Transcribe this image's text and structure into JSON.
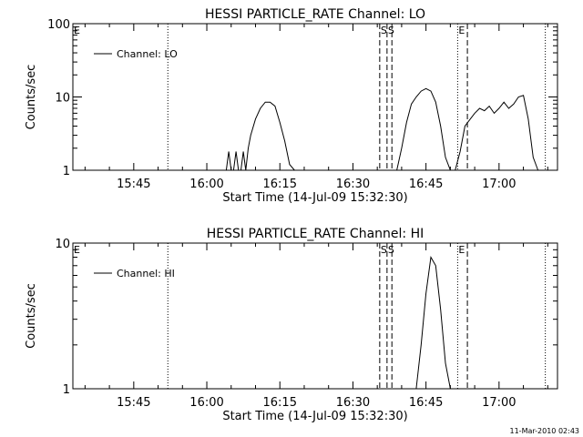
{
  "chart_data": [
    {
      "type": "line",
      "title": "HESSI PARTICLE_RATE Channel: LO",
      "xlabel": "Start Time (14-Jul-09 15:32:30)",
      "ylabel": "Counts/sec",
      "y_scale": "log",
      "ylim": [
        1,
        100
      ],
      "xlim": [
        "15:32:30",
        "17:12:00"
      ],
      "x_ticks": [
        "15:45",
        "16:00",
        "16:15",
        "16:30",
        "16:45",
        "17:00"
      ],
      "y_ticks": [
        "1",
        "10",
        "100"
      ],
      "legend": "top-left",
      "series": [
        {
          "name": "Channel: LO",
          "x": [
            "16:04:00",
            "16:04:30",
            "16:05:00",
            "16:05:30",
            "16:06:00",
            "16:06:30",
            "16:07:00",
            "16:07:30",
            "16:08:00",
            "16:08:30",
            "16:09:00",
            "16:10:00",
            "16:11:00",
            "16:12:00",
            "16:13:00",
            "16:14:00",
            "16:15:00",
            "16:16:00",
            "16:17:00",
            "16:18:00",
            "16:19:00",
            "16:20:00",
            "16:39:00",
            "16:40:00",
            "16:41:00",
            "16:42:00",
            "16:43:00",
            "16:44:00",
            "16:45:00",
            "16:46:00",
            "16:47:00",
            "16:48:00",
            "16:49:00",
            "16:50:00",
            "16:51:00",
            "16:52:00",
            "16:53:00",
            "16:55:00",
            "16:56:00",
            "16:57:00",
            "16:58:00",
            "16:59:00",
            "17:00:00",
            "17:01:00",
            "17:02:00",
            "17:03:00",
            "17:04:00",
            "17:05:00",
            "17:06:00",
            "17:07:00",
            "17:08:00"
          ],
          "y": [
            1.0,
            1.8,
            1.0,
            1.0,
            1.8,
            1.0,
            1.0,
            1.8,
            1.0,
            2.0,
            3.0,
            5.0,
            7.0,
            8.5,
            8.5,
            7.5,
            4.5,
            2.5,
            1.2,
            1.0,
            1.0,
            1.0,
            1.0,
            2.0,
            4.5,
            8.0,
            10.0,
            12.0,
            13.0,
            12.0,
            8.5,
            4.0,
            1.5,
            1.0,
            1.0,
            1.8,
            4.0,
            6.0,
            7.0,
            6.5,
            7.5,
            6.0,
            7.0,
            8.5,
            7.0,
            8.0,
            10.0,
            10.5,
            5.0,
            1.5,
            1.0
          ]
        }
      ],
      "vertical_lines": [
        {
          "time": "15:32:30",
          "style": "dotted",
          "label": "E"
        },
        {
          "time": "15:52:00",
          "style": "dotted",
          "label": ""
        },
        {
          "time": "16:35:30",
          "style": "dashed",
          "label": "S"
        },
        {
          "time": "16:37:00",
          "style": "dashed",
          "label": "S"
        },
        {
          "time": "16:38:00",
          "style": "dashed",
          "label": ""
        },
        {
          "time": "16:51:30",
          "style": "dotted",
          "label": "E"
        },
        {
          "time": "16:53:30",
          "style": "dashed",
          "label": ""
        },
        {
          "time": "17:09:30",
          "style": "dotted",
          "label": ""
        }
      ]
    },
    {
      "type": "line",
      "title": "HESSI PARTICLE_RATE Channel: HI",
      "xlabel": "Start Time (14-Jul-09 15:32:30)",
      "ylabel": "Counts/sec",
      "y_scale": "log",
      "ylim": [
        1,
        10
      ],
      "xlim": [
        "15:32:30",
        "17:12:00"
      ],
      "x_ticks": [
        "15:45",
        "16:00",
        "16:15",
        "16:30",
        "16:45",
        "17:00"
      ],
      "y_ticks": [
        "1",
        "10"
      ],
      "legend": "top-left",
      "series": [
        {
          "name": "Channel: HI",
          "x": [
            "16:43:00",
            "16:44:00",
            "16:45:00",
            "16:46:00",
            "16:47:00",
            "16:48:00",
            "16:49:00",
            "16:50:00"
          ],
          "y": [
            1.0,
            2.0,
            4.5,
            8.0,
            7.0,
            3.5,
            1.5,
            1.0
          ]
        }
      ],
      "vertical_lines": [
        {
          "time": "15:32:30",
          "style": "dotted",
          "label": "E"
        },
        {
          "time": "15:52:00",
          "style": "dotted",
          "label": ""
        },
        {
          "time": "16:35:30",
          "style": "dashed",
          "label": "S"
        },
        {
          "time": "16:37:00",
          "style": "dashed",
          "label": "S"
        },
        {
          "time": "16:38:00",
          "style": "dashed",
          "label": ""
        },
        {
          "time": "16:51:30",
          "style": "dotted",
          "label": "E"
        },
        {
          "time": "16:53:30",
          "style": "dashed",
          "label": ""
        },
        {
          "time": "17:09:30",
          "style": "dotted",
          "label": ""
        }
      ]
    }
  ],
  "footer": {
    "timestamp": "11-Mar-2010 02:43"
  }
}
